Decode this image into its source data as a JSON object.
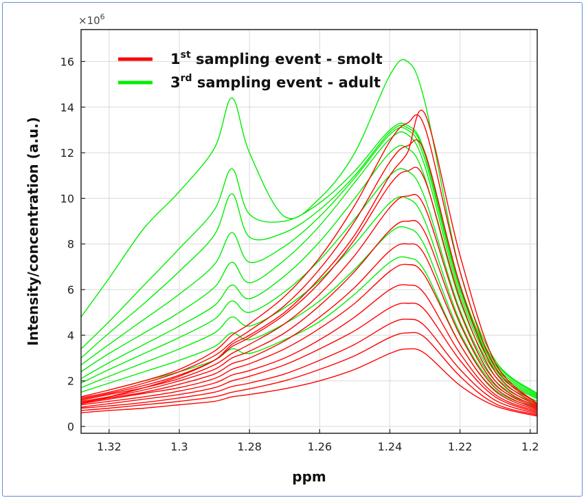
{
  "chart_data": {
    "type": "line",
    "xlabel": "ppm",
    "ylabel": "Intensity/concentration (a.u.)",
    "exponent_base": "×10",
    "exponent_power": "6",
    "xlim": [
      1.328,
      1.198
    ],
    "ylim": [
      -0.3,
      17.4
    ],
    "x_reversed": true,
    "grid": true,
    "legend_position": "top-left",
    "x_ticks": [
      "1.32",
      "1.3",
      "1.28",
      "1.26",
      "1.24",
      "1.22",
      "1.2"
    ],
    "x_tick_values": [
      1.32,
      1.3,
      1.28,
      1.26,
      1.24,
      1.22,
      1.2
    ],
    "y_ticks": [
      "0",
      "2",
      "4",
      "6",
      "8",
      "10",
      "12",
      "14",
      "16"
    ],
    "y_tick_values": [
      0,
      2,
      4,
      6,
      8,
      10,
      12,
      14,
      16
    ],
    "x": [
      1.328,
      1.32,
      1.31,
      1.3,
      1.29,
      1.285,
      1.28,
      1.27,
      1.26,
      1.25,
      1.24,
      1.235,
      1.23,
      1.22,
      1.21,
      1.198
    ],
    "series": [
      {
        "name": "1st sampling event - smolt",
        "label_main": "1",
        "label_sup": "st",
        "label_rest": " sampling event - smolt",
        "color": "#ff0000",
        "values": [
          [
            0.6,
            0.7,
            0.8,
            0.95,
            1.1,
            1.3,
            1.4,
            1.65,
            2.0,
            2.5,
            3.2,
            3.4,
            3.2,
            1.8,
            0.9,
            0.45
          ],
          [
            0.7,
            0.8,
            0.95,
            1.1,
            1.3,
            1.5,
            1.65,
            2.0,
            2.5,
            3.1,
            3.9,
            4.1,
            3.9,
            2.2,
            1.0,
            0.5
          ],
          [
            0.8,
            0.9,
            1.05,
            1.25,
            1.5,
            1.75,
            1.9,
            2.3,
            2.9,
            3.6,
            4.5,
            4.7,
            4.4,
            2.5,
            1.15,
            0.55
          ],
          [
            0.85,
            1.0,
            1.2,
            1.4,
            1.7,
            2.0,
            2.2,
            2.7,
            3.4,
            4.2,
            5.2,
            5.4,
            5.1,
            2.9,
            1.3,
            0.6
          ],
          [
            0.95,
            1.1,
            1.3,
            1.55,
            1.9,
            2.25,
            2.45,
            3.0,
            3.8,
            4.8,
            6.0,
            6.2,
            5.8,
            3.2,
            1.4,
            0.65
          ],
          [
            1.0,
            1.2,
            1.45,
            1.7,
            2.1,
            2.5,
            2.75,
            3.4,
            4.3,
            5.4,
            6.8,
            7.1,
            6.6,
            3.6,
            1.55,
            0.7
          ],
          [
            1.05,
            1.25,
            1.5,
            1.85,
            2.3,
            2.75,
            3.0,
            3.75,
            4.8,
            6.1,
            7.7,
            8.0,
            7.5,
            4.0,
            1.7,
            0.75
          ],
          [
            1.1,
            1.3,
            1.6,
            2.0,
            2.5,
            3.0,
            3.3,
            4.1,
            5.3,
            6.8,
            8.6,
            9.0,
            8.5,
            4.5,
            1.85,
            0.8
          ],
          [
            1.15,
            1.4,
            1.7,
            2.1,
            2.7,
            3.2,
            3.6,
            4.5,
            5.8,
            7.5,
            9.6,
            10.1,
            9.6,
            5.0,
            2.0,
            0.85
          ],
          [
            1.2,
            1.45,
            1.8,
            2.25,
            2.9,
            3.5,
            3.9,
            4.9,
            6.3,
            8.2,
            10.6,
            11.2,
            10.8,
            5.6,
            2.2,
            0.9
          ],
          [
            1.25,
            1.5,
            1.9,
            2.4,
            3.1,
            3.7,
            4.2,
            5.3,
            6.9,
            9.0,
            11.6,
            12.3,
            12.0,
            6.2,
            2.4,
            0.95
          ],
          [
            1.3,
            1.6,
            2.0,
            2.5,
            3.3,
            4.0,
            4.5,
            5.7,
            7.4,
            9.7,
            12.5,
            13.3,
            13.1,
            6.8,
            2.6,
            1.0
          ],
          [
            1.0,
            1.3,
            1.7,
            2.2,
            2.9,
            3.6,
            4.0,
            5.0,
            6.5,
            8.4,
            11.0,
            12.0,
            13.7,
            7.5,
            2.8,
            1.0
          ]
        ]
      },
      {
        "name": "3rd sampling event - adult",
        "label_main": "3",
        "label_sup": "rd",
        "label_rest": " sampling event - adult",
        "color": "#00ee00",
        "values": [
          [
            1.3,
            1.6,
            2.0,
            2.4,
            2.9,
            3.4,
            3.2,
            3.8,
            4.6,
            5.8,
            7.2,
            7.4,
            6.8,
            3.6,
            1.6,
            0.8
          ],
          [
            1.5,
            1.9,
            2.4,
            2.9,
            3.5,
            4.1,
            3.8,
            4.5,
            5.5,
            6.9,
            8.5,
            8.7,
            7.9,
            4.1,
            1.8,
            0.9
          ],
          [
            1.7,
            2.2,
            2.8,
            3.4,
            4.1,
            4.8,
            4.4,
            5.2,
            6.4,
            8.0,
            9.8,
            10.0,
            9.0,
            4.6,
            2.0,
            1.0
          ],
          [
            1.9,
            2.5,
            3.2,
            3.9,
            4.7,
            5.5,
            5.0,
            5.9,
            7.3,
            9.1,
            11.0,
            11.2,
            10.0,
            5.1,
            2.2,
            1.1
          ],
          [
            2.1,
            2.8,
            3.6,
            4.4,
            5.3,
            6.2,
            5.6,
            6.6,
            8.1,
            10.0,
            12.0,
            12.2,
            10.9,
            5.5,
            2.4,
            1.2
          ],
          [
            2.4,
            3.2,
            4.1,
            5.0,
            6.1,
            7.2,
            6.3,
            7.3,
            8.8,
            10.7,
            12.6,
            12.8,
            11.4,
            5.8,
            2.5,
            1.25
          ],
          [
            2.7,
            3.6,
            4.7,
            5.8,
            7.1,
            8.5,
            7.2,
            7.9,
            9.2,
            10.9,
            12.8,
            13.0,
            11.7,
            6.0,
            2.6,
            1.3
          ],
          [
            3.0,
            4.1,
            5.4,
            6.8,
            8.4,
            10.2,
            8.3,
            8.5,
            9.5,
            11.0,
            12.9,
            13.1,
            11.9,
            6.1,
            2.7,
            1.35
          ],
          [
            3.4,
            4.6,
            6.2,
            7.8,
            9.5,
            11.3,
            9.3,
            9.0,
            9.8,
            11.2,
            13.0,
            13.2,
            12.0,
            6.2,
            2.8,
            1.4
          ],
          [
            4.8,
            6.5,
            8.7,
            10.3,
            12.2,
            14.4,
            12.0,
            9.2,
            10.0,
            12.0,
            15.4,
            16.0,
            14.2,
            6.8,
            2.9,
            1.45
          ]
        ]
      }
    ]
  }
}
